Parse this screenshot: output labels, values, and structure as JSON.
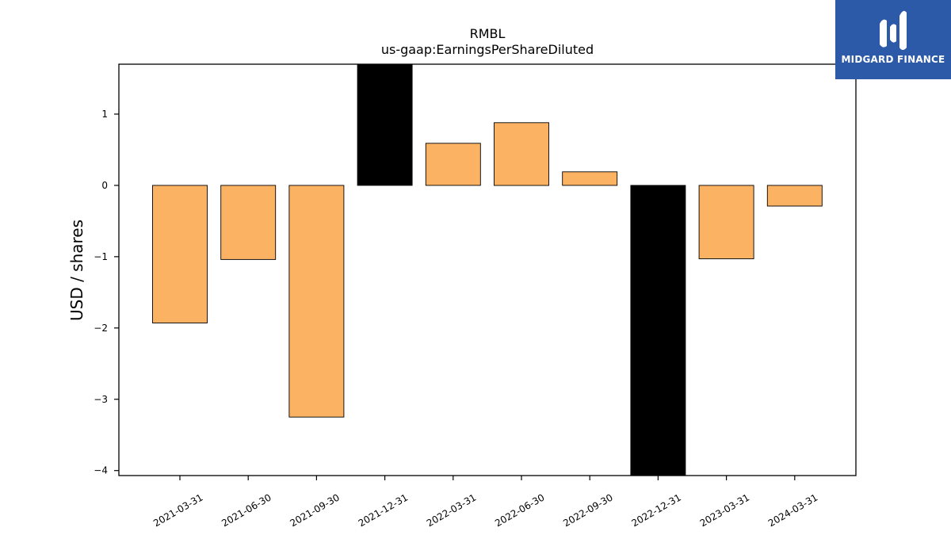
{
  "chart_data": {
    "type": "bar",
    "title": "RMBL",
    "subtitle": "us-gaap:EarningsPerShareDiluted",
    "xlabel": "",
    "ylabel": "USD / shares",
    "categories": [
      "2021-03-31",
      "2021-06-30",
      "2021-09-30",
      "2021-12-31",
      "2022-03-31",
      "2022-06-30",
      "2022-09-30",
      "2022-12-31",
      "2023-03-31",
      "2024-03-31"
    ],
    "values": [
      -1.93,
      -1.04,
      -3.25,
      1.7,
      0.59,
      0.88,
      0.19,
      -4.08,
      -1.03,
      -0.29
    ],
    "bar_colors": [
      "#fbb363",
      "#fbb363",
      "#fbb363",
      "#000000",
      "#fbb363",
      "#fbb363",
      "#fbb363",
      "#000000",
      "#fbb363",
      "#fbb363"
    ],
    "ylim": [
      -4.07,
      1.7
    ],
    "yticks": [
      1,
      0,
      -1,
      -2,
      -3,
      -4
    ],
    "ytick_labels": [
      "1",
      "0",
      "−1",
      "−2",
      "−3",
      "−4"
    ],
    "grid": false,
    "legend": "none"
  },
  "logo": {
    "text": "MIDGARD FINANCE",
    "icon": "midgard-logo-mark-icon",
    "background": "#2c5aa8"
  }
}
